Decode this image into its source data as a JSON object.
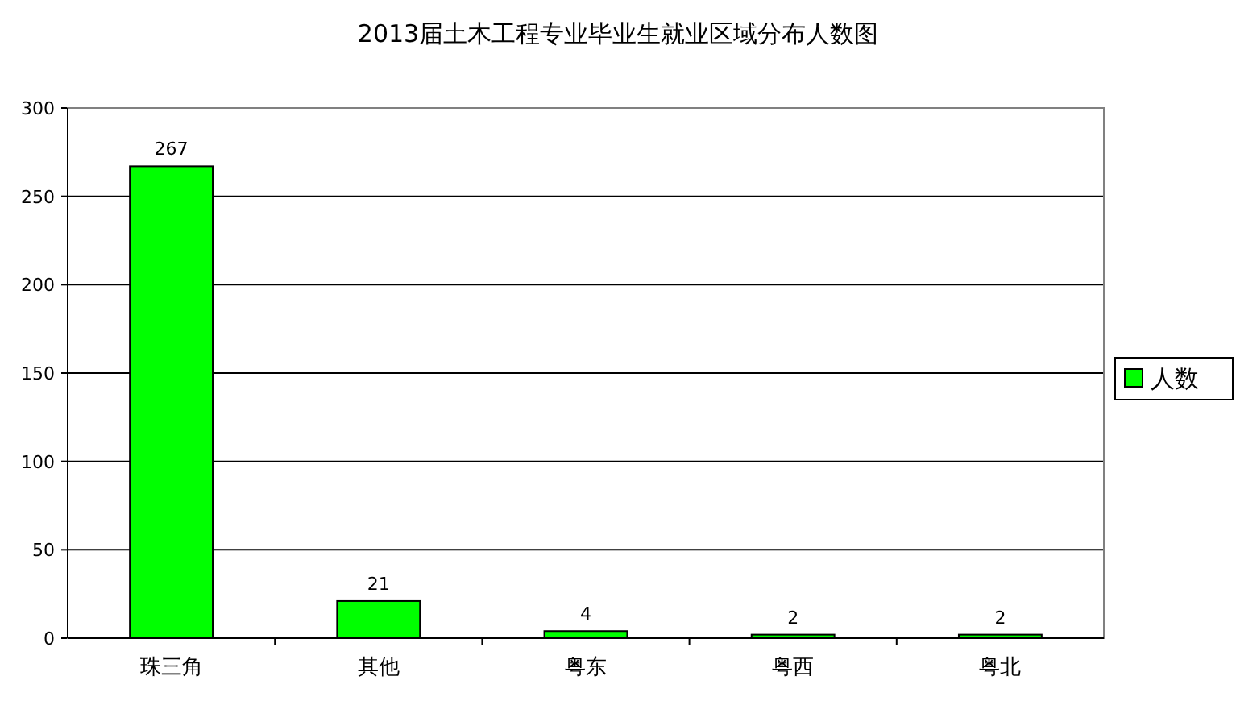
{
  "chart_data": {
    "type": "bar",
    "title": "2013届土木工程专业毕业生就业区域分布人数图",
    "categories": [
      "珠三角",
      "其他",
      "粤东",
      "粤西",
      "粤北"
    ],
    "series": [
      {
        "name": "人数",
        "color": "#00ff00",
        "values": [
          267,
          21,
          4,
          2,
          2
        ]
      }
    ],
    "ylim": [
      0,
      300
    ],
    "yticks": [
      0,
      50,
      100,
      150,
      200,
      250,
      300
    ],
    "grid": "y",
    "legend": "right",
    "data_labels": true
  }
}
